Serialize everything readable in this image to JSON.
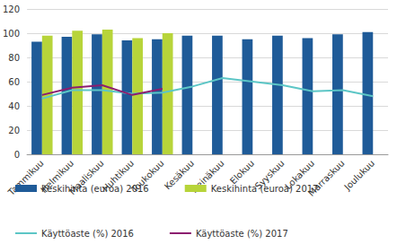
{
  "chart_data": {
    "type": "bar",
    "categories": [
      "Tammikuu",
      "Helmikuu",
      "Maaliskuu",
      "Huhtikuu",
      "Toukokuu",
      "Kesäkuu",
      "Heinäkuu",
      "Elokuu",
      "Syyskuu",
      "Lokakuu",
      "Marraskuu",
      "Joulukuu"
    ],
    "series": [
      {
        "name": "Keskihinta (euroa) 2016",
        "type": "bar",
        "color": "#1f5b98",
        "values": [
          93,
          97,
          99,
          94,
          95,
          98,
          98,
          95,
          98,
          96,
          99,
          101
        ]
      },
      {
        "name": "Keskihinta (euroa) 2017",
        "type": "bar",
        "color": "#b7d43a",
        "values": [
          98,
          102,
          103,
          96,
          100,
          null,
          null,
          null,
          null,
          null,
          null,
          null
        ]
      },
      {
        "name": "Käyttöaste (%) 2016",
        "type": "line",
        "color": "#5cc6c6",
        "values": [
          46,
          53,
          53,
          50,
          51,
          56,
          63,
          60,
          57,
          52,
          53,
          48
        ]
      },
      {
        "name": "Käyttöaste (%) 2017",
        "type": "line",
        "color": "#8c1d6f",
        "values": [
          49,
          55,
          57,
          49,
          54,
          null,
          null,
          null,
          null,
          null,
          null,
          null
        ]
      }
    ],
    "ylim": [
      0,
      120
    ],
    "yticks": [
      0,
      20,
      40,
      60,
      80,
      100,
      120
    ],
    "grid": true,
    "legend": "bottom"
  }
}
